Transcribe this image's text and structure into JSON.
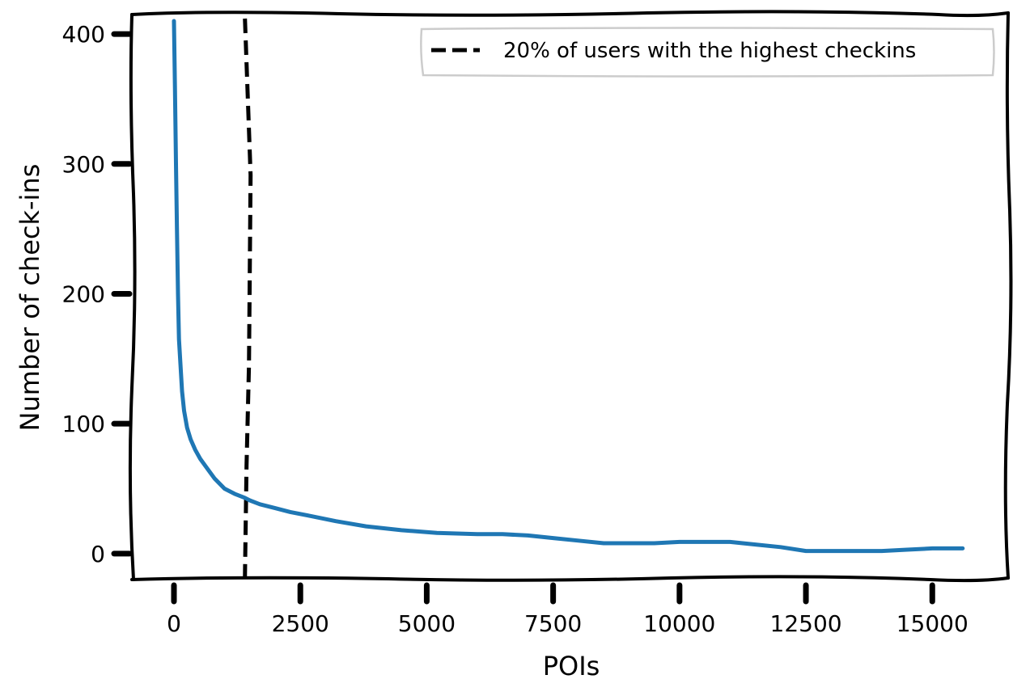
{
  "chart_data": {
    "type": "line",
    "title": "",
    "xlabel": "POIs",
    "ylabel": "Number of check-ins",
    "xlim": [
      -800,
      16500
    ],
    "ylim": [
      -20,
      415
    ],
    "xticks": [
      0,
      2500,
      5000,
      7500,
      10000,
      12500,
      15000
    ],
    "xtick_labels": [
      "0",
      "2500",
      "5000",
      "7500",
      "10000",
      "12500",
      "15000"
    ],
    "yticks": [
      0,
      100,
      200,
      300,
      400
    ],
    "ytick_labels": [
      "0",
      "100",
      "200",
      "300",
      "400"
    ],
    "grid": false,
    "legend_position": "top-right",
    "style": "hand-drawn",
    "colors": {
      "series": "#1f77b4",
      "threshold": "#000000",
      "axes": "#000000",
      "legend_border": "#cccccc"
    },
    "series": [
      {
        "x": [
          0,
          20,
          40,
          60,
          80,
          100,
          130,
          160,
          200,
          260,
          330,
          420,
          520,
          650,
          800,
          1000,
          1200,
          1400,
          1500,
          1700,
          2000,
          2300,
          2700,
          3200,
          3800,
          4500,
          5200,
          6000,
          6500,
          7000,
          7500,
          8000,
          8500,
          9000,
          9500,
          10000,
          10500,
          11000,
          11500,
          12000,
          12500,
          13000,
          13500,
          14000,
          14500,
          15000,
          15600
        ],
        "y": [
          410,
          360,
          300,
          250,
          200,
          165,
          145,
          125,
          110,
          97,
          88,
          80,
          73,
          66,
          58,
          50,
          46,
          43,
          41,
          38,
          35,
          32,
          29,
          25,
          21,
          18,
          16,
          15,
          15,
          14,
          12,
          10,
          8,
          8,
          8,
          9,
          9,
          9,
          7,
          5,
          2,
          2,
          2,
          2,
          3,
          4,
          4
        ]
      }
    ],
    "threshold_line": {
      "x": 1500,
      "style": "dashed",
      "label": "20% of users with the highest checkins"
    }
  }
}
